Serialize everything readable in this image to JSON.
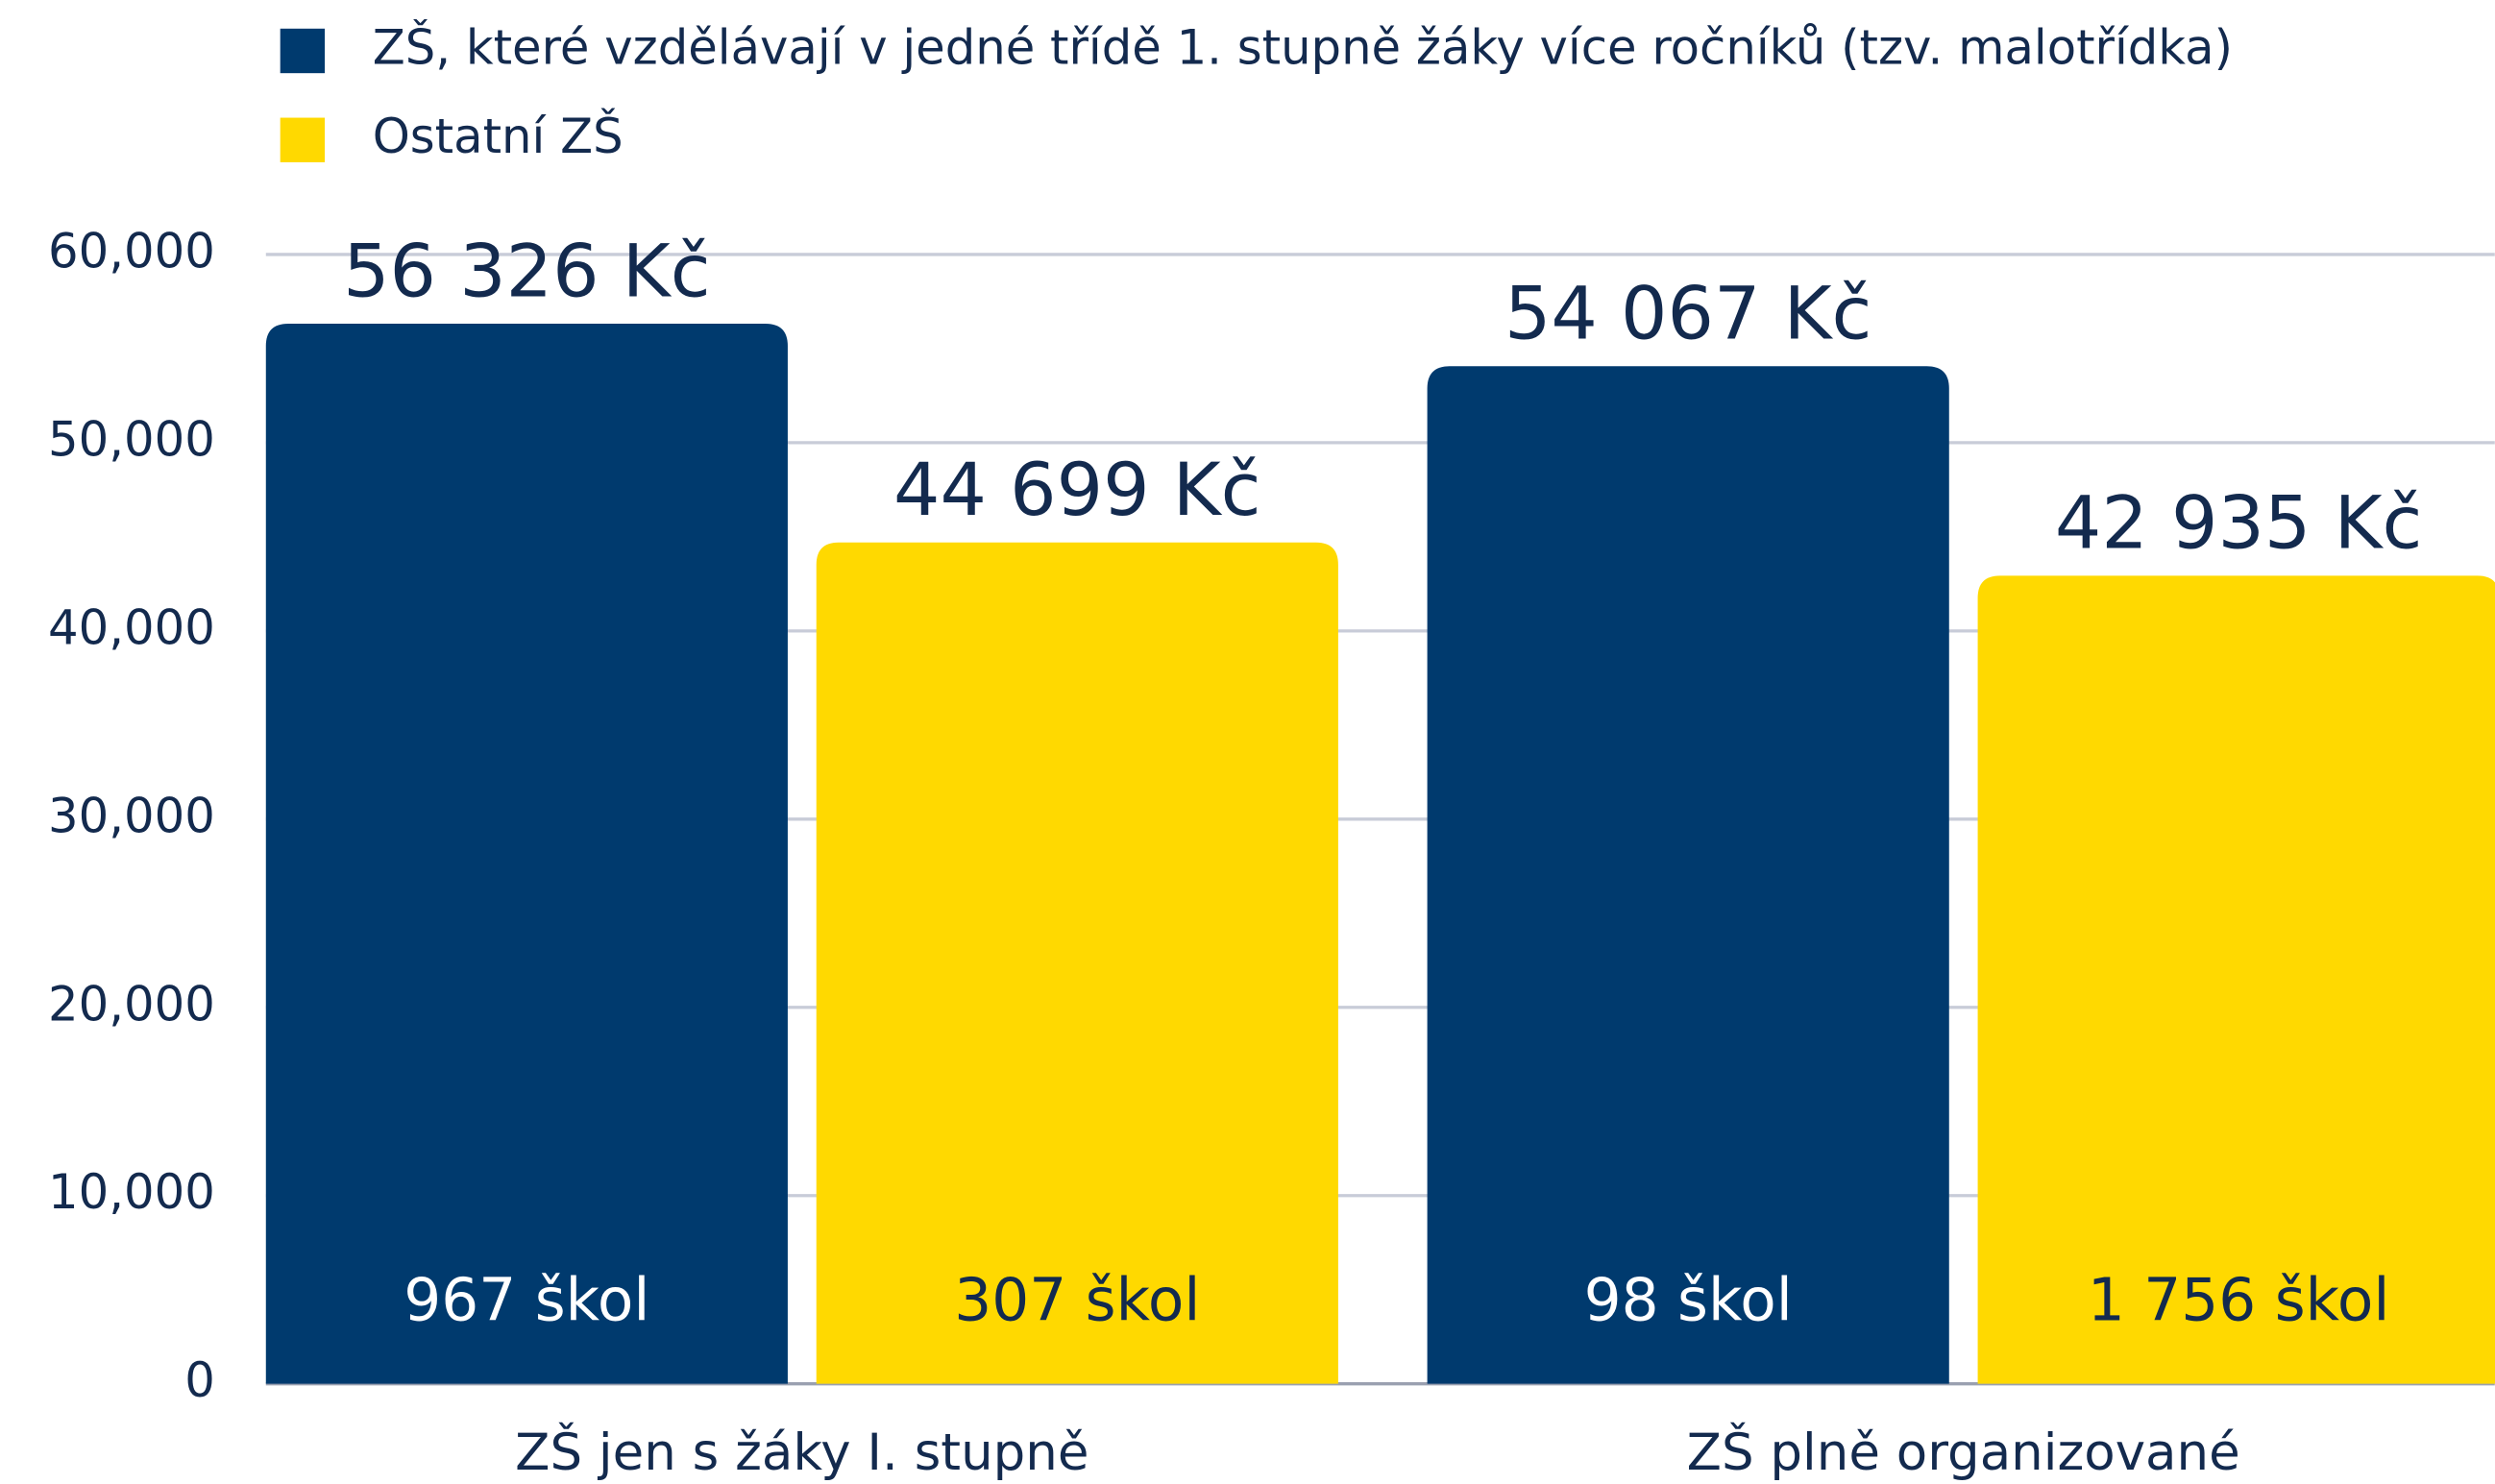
{
  "chart_data": {
    "type": "bar",
    "categories": [
      "ZŠ jen s žáky I. stupně",
      "ZŠ plně organizované"
    ],
    "series": [
      {
        "name": "ZŠ, které vzdělávají v jedné třídě 1. stupně žáky více ročníků (tzv. malotřídka)",
        "color": "#003a6e",
        "label_color": "#ffffff",
        "values": [
          56326,
          54067
        ],
        "value_labels": [
          "56 326 Kč",
          "54 067 Kč"
        ],
        "school_labels": [
          "967 škol",
          "98 škol"
        ]
      },
      {
        "name": "Ostatní ZŠ",
        "color": "#ffd900",
        "label_color": "#132a4e",
        "values": [
          44699,
          42935
        ],
        "value_labels": [
          "44 699 Kč",
          "42 935 Kč"
        ],
        "school_labels": [
          "307 škol",
          "1 756 škol"
        ]
      }
    ],
    "ylim": [
      0,
      60000
    ],
    "yticks": [
      0,
      {
        "value": 10000,
        "label": "10,000"
      },
      {
        "value": 20000,
        "label": "20,000"
      },
      {
        "value": 30000,
        "label": "30,000"
      },
      {
        "value": 40000,
        "label": "40,000"
      },
      {
        "value": 50000,
        "label": "50,000"
      },
      {
        "value": 60000,
        "label": "60,000"
      }
    ],
    "grid": true
  }
}
